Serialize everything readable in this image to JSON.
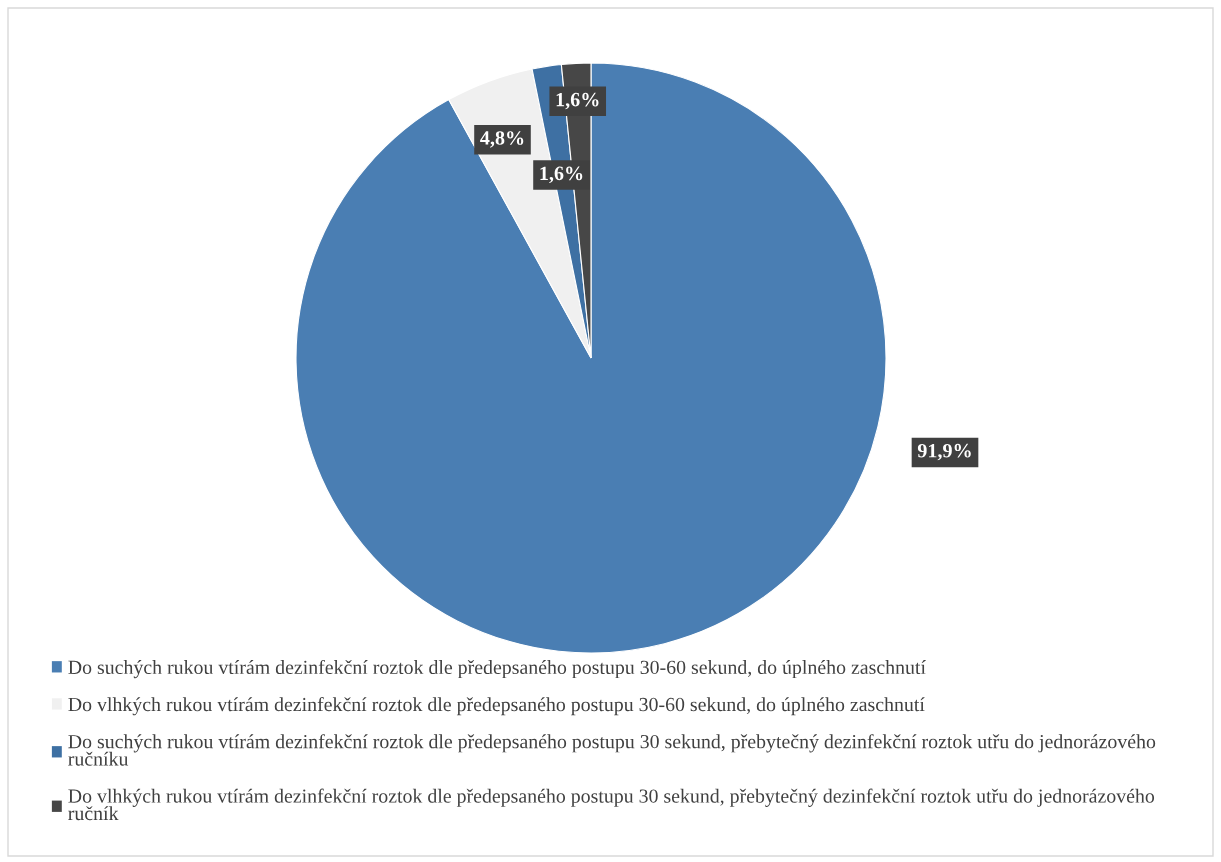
{
  "chart_data": {
    "type": "pie",
    "categories": [
      "Do suchých rukou vtírám dezinfekční roztok dle předepsaného postupu 30-60 sekund, do úplného zaschnutí",
      "Do vlhkých rukou vtírám dezinfekční roztok dle předepsaného postupu 30-60 sekund, do úplného zaschnutí",
      "Do suchých rukou vtírám dezinfekční roztok dle předepsaného postupu 30 sekund, přebytečný dezinfekční roztok utřu do jednorázového ručníku",
      "Do vlhkých rukou vtírám dezinfekční roztok dle předepsaného postupu 30 sekund, přebytečný dezinfekční roztok utřu do jednorázového ručník"
    ],
    "values": [
      91.9,
      4.8,
      1.6,
      1.6
    ],
    "colors": [
      "#4a7eb3",
      "#f0f0f0",
      "#3e70a3",
      "#474747"
    ],
    "value_labels": [
      "91,9%",
      "4,8%",
      "1,6%",
      "1,6%"
    ],
    "legend": "bottom"
  }
}
